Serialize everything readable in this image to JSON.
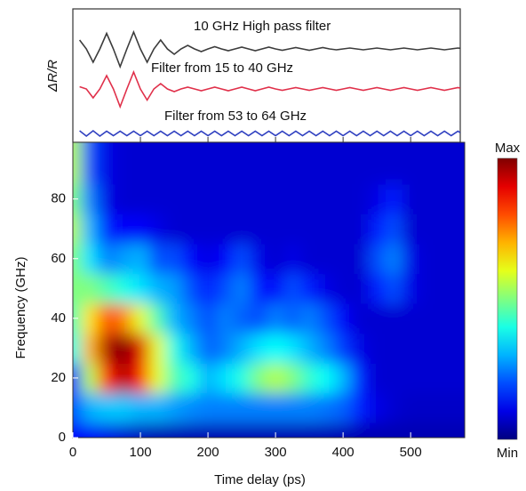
{
  "chart_data": [
    {
      "type": "line",
      "ylabel": "ΔR/R",
      "xlim": [
        0,
        580
      ],
      "ylim": [
        -0.2,
        2.8
      ],
      "x": [
        10,
        20,
        30,
        40,
        50,
        60,
        70,
        80,
        90,
        100,
        110,
        120,
        130,
        140,
        150,
        160,
        170,
        180,
        190,
        200,
        210,
        220,
        230,
        240,
        250,
        260,
        270,
        280,
        290,
        300,
        310,
        320,
        330,
        340,
        350,
        360,
        370,
        380,
        390,
        400,
        410,
        420,
        430,
        440,
        450,
        460,
        470,
        480,
        490,
        500,
        510,
        520,
        530,
        540,
        550,
        560,
        570,
        580
      ],
      "series": [
        {
          "name": "10 GHz High pass filter",
          "color": "#3c3c3c",
          "values": [
            2.1,
            1.9,
            1.6,
            1.9,
            2.25,
            1.9,
            1.5,
            1.9,
            2.28,
            1.9,
            1.6,
            1.9,
            2.1,
            1.9,
            1.78,
            1.9,
            1.98,
            1.9,
            1.84,
            1.9,
            1.95,
            1.9,
            1.86,
            1.9,
            1.94,
            1.9,
            1.86,
            1.9,
            1.94,
            1.9,
            1.87,
            1.9,
            1.93,
            1.9,
            1.87,
            1.9,
            1.93,
            1.9,
            1.88,
            1.9,
            1.92,
            1.9,
            1.88,
            1.9,
            1.92,
            1.9,
            1.88,
            1.9,
            1.92,
            1.9,
            1.88,
            1.9,
            1.92,
            1.9,
            1.88,
            1.9,
            1.92,
            1.9
          ]
        },
        {
          "name": "Filter from 15 to 40 GHz",
          "color": "#e0304a",
          "values": [
            1.05,
            1.0,
            0.8,
            1.0,
            1.3,
            1.0,
            0.6,
            1.0,
            1.38,
            1.0,
            0.75,
            1.0,
            1.12,
            1.0,
            0.94,
            1.0,
            1.04,
            1.0,
            0.96,
            1.0,
            1.04,
            1.0,
            0.96,
            1.0,
            1.04,
            1.0,
            0.96,
            1.0,
            1.04,
            1.0,
            0.97,
            1.0,
            1.03,
            1.0,
            0.97,
            1.0,
            1.03,
            1.0,
            0.97,
            1.0,
            1.03,
            1.0,
            0.97,
            1.0,
            1.03,
            1.0,
            0.97,
            1.0,
            1.03,
            1.0,
            0.97,
            1.0,
            1.03,
            1.0,
            0.97,
            1.0,
            1.03,
            1.0
          ]
        },
        {
          "name": "Filter from 53 to 64 GHz",
          "color": "#3040c0",
          "values": [
            0.06,
            -0.06,
            0.06,
            -0.06,
            0.05,
            -0.05,
            0.05,
            -0.05,
            0.05,
            -0.05,
            0.05,
            -0.05,
            0.05,
            -0.05,
            0.05,
            -0.05,
            0.05,
            -0.05,
            0.05,
            -0.05,
            0.05,
            -0.05,
            0.05,
            -0.05,
            0.05,
            -0.05,
            0.05,
            -0.05,
            0.05,
            -0.05,
            0.05,
            -0.05,
            0.05,
            -0.05,
            0.05,
            -0.05,
            0.05,
            -0.05,
            0.05,
            -0.05,
            0.05,
            -0.05,
            0.05,
            -0.05,
            0.05,
            -0.05,
            0.05,
            -0.05,
            0.05,
            -0.05,
            0.05,
            -0.05,
            0.05,
            -0.05,
            0.05,
            -0.05,
            0.05,
            -0.05
          ]
        }
      ]
    },
    {
      "type": "heatmap",
      "xlabel": "Time delay (ps)",
      "ylabel": "Frequency (GHz)",
      "xlim": [
        0,
        580
      ],
      "ylim": [
        0,
        99
      ],
      "xticks": [
        0,
        100,
        200,
        300,
        400,
        500
      ],
      "yticks": [
        0,
        20,
        40,
        60,
        80
      ],
      "zlim": [
        0,
        1
      ],
      "colorbar_ticks": [
        {
          "value": 1,
          "label": "Max"
        },
        {
          "value": 0,
          "label": "Min"
        }
      ],
      "x": [
        0,
        25,
        50,
        75,
        100,
        125,
        150,
        175,
        200,
        225,
        250,
        275,
        300,
        325,
        350,
        375,
        400,
        425,
        450,
        475,
        500,
        525,
        550,
        575
      ],
      "y": [
        0,
        10,
        20,
        30,
        40,
        50,
        60,
        70,
        80,
        90
      ],
      "z": [
        [
          0.12,
          0.12,
          0.1,
          0.08,
          0.06,
          0.05,
          0.05,
          0.05,
          0.05,
          0.05,
          0.05,
          0.05,
          0.05,
          0.05,
          0.05,
          0.05,
          0.05,
          0.05,
          0.05,
          0.05,
          0.05,
          0.05,
          0.05,
          0.05
        ],
        [
          0.2,
          0.3,
          0.32,
          0.32,
          0.3,
          0.3,
          0.28,
          0.26,
          0.25,
          0.25,
          0.25,
          0.25,
          0.25,
          0.25,
          0.25,
          0.24,
          0.22,
          0.15,
          0.1,
          0.08,
          0.07,
          0.07,
          0.07,
          0.07
        ],
        [
          0.15,
          0.55,
          0.85,
          0.95,
          0.85,
          0.6,
          0.45,
          0.4,
          0.3,
          0.35,
          0.4,
          0.5,
          0.55,
          0.5,
          0.42,
          0.38,
          0.3,
          0.15,
          0.08,
          0.08,
          0.08,
          0.08,
          0.08,
          0.08
        ],
        [
          0.4,
          0.7,
          0.95,
          1.0,
          0.9,
          0.6,
          0.4,
          0.3,
          0.22,
          0.25,
          0.3,
          0.35,
          0.38,
          0.35,
          0.3,
          0.25,
          0.18,
          0.1,
          0.08,
          0.08,
          0.08,
          0.08,
          0.08,
          0.08
        ],
        [
          0.45,
          0.65,
          0.8,
          0.75,
          0.6,
          0.45,
          0.3,
          0.25,
          0.2,
          0.25,
          0.22,
          0.2,
          0.25,
          0.22,
          0.25,
          0.2,
          0.12,
          0.08,
          0.08,
          0.08,
          0.08,
          0.08,
          0.08,
          0.08
        ],
        [
          0.5,
          0.5,
          0.45,
          0.4,
          0.35,
          0.3,
          0.28,
          0.2,
          0.15,
          0.2,
          0.25,
          0.15,
          0.12,
          0.2,
          0.15,
          0.1,
          0.08,
          0.08,
          0.15,
          0.2,
          0.1,
          0.08,
          0.08,
          0.08
        ],
        [
          0.5,
          0.35,
          0.25,
          0.28,
          0.3,
          0.2,
          0.2,
          0.12,
          0.1,
          0.12,
          0.2,
          0.1,
          0.08,
          0.1,
          0.08,
          0.08,
          0.08,
          0.08,
          0.2,
          0.25,
          0.1,
          0.08,
          0.08,
          0.08
        ],
        [
          0.55,
          0.3,
          0.15,
          0.12,
          0.12,
          0.1,
          0.08,
          0.08,
          0.08,
          0.08,
          0.08,
          0.08,
          0.08,
          0.08,
          0.08,
          0.08,
          0.08,
          0.08,
          0.15,
          0.2,
          0.08,
          0.08,
          0.08,
          0.08
        ],
        [
          0.5,
          0.25,
          0.1,
          0.08,
          0.08,
          0.08,
          0.08,
          0.08,
          0.08,
          0.08,
          0.08,
          0.08,
          0.08,
          0.08,
          0.08,
          0.08,
          0.08,
          0.08,
          0.1,
          0.15,
          0.08,
          0.08,
          0.08,
          0.08
        ],
        [
          0.55,
          0.2,
          0.1,
          0.08,
          0.08,
          0.08,
          0.08,
          0.08,
          0.08,
          0.08,
          0.08,
          0.08,
          0.08,
          0.08,
          0.08,
          0.08,
          0.08,
          0.08,
          0.08,
          0.08,
          0.08,
          0.08,
          0.08,
          0.08
        ]
      ]
    }
  ]
}
